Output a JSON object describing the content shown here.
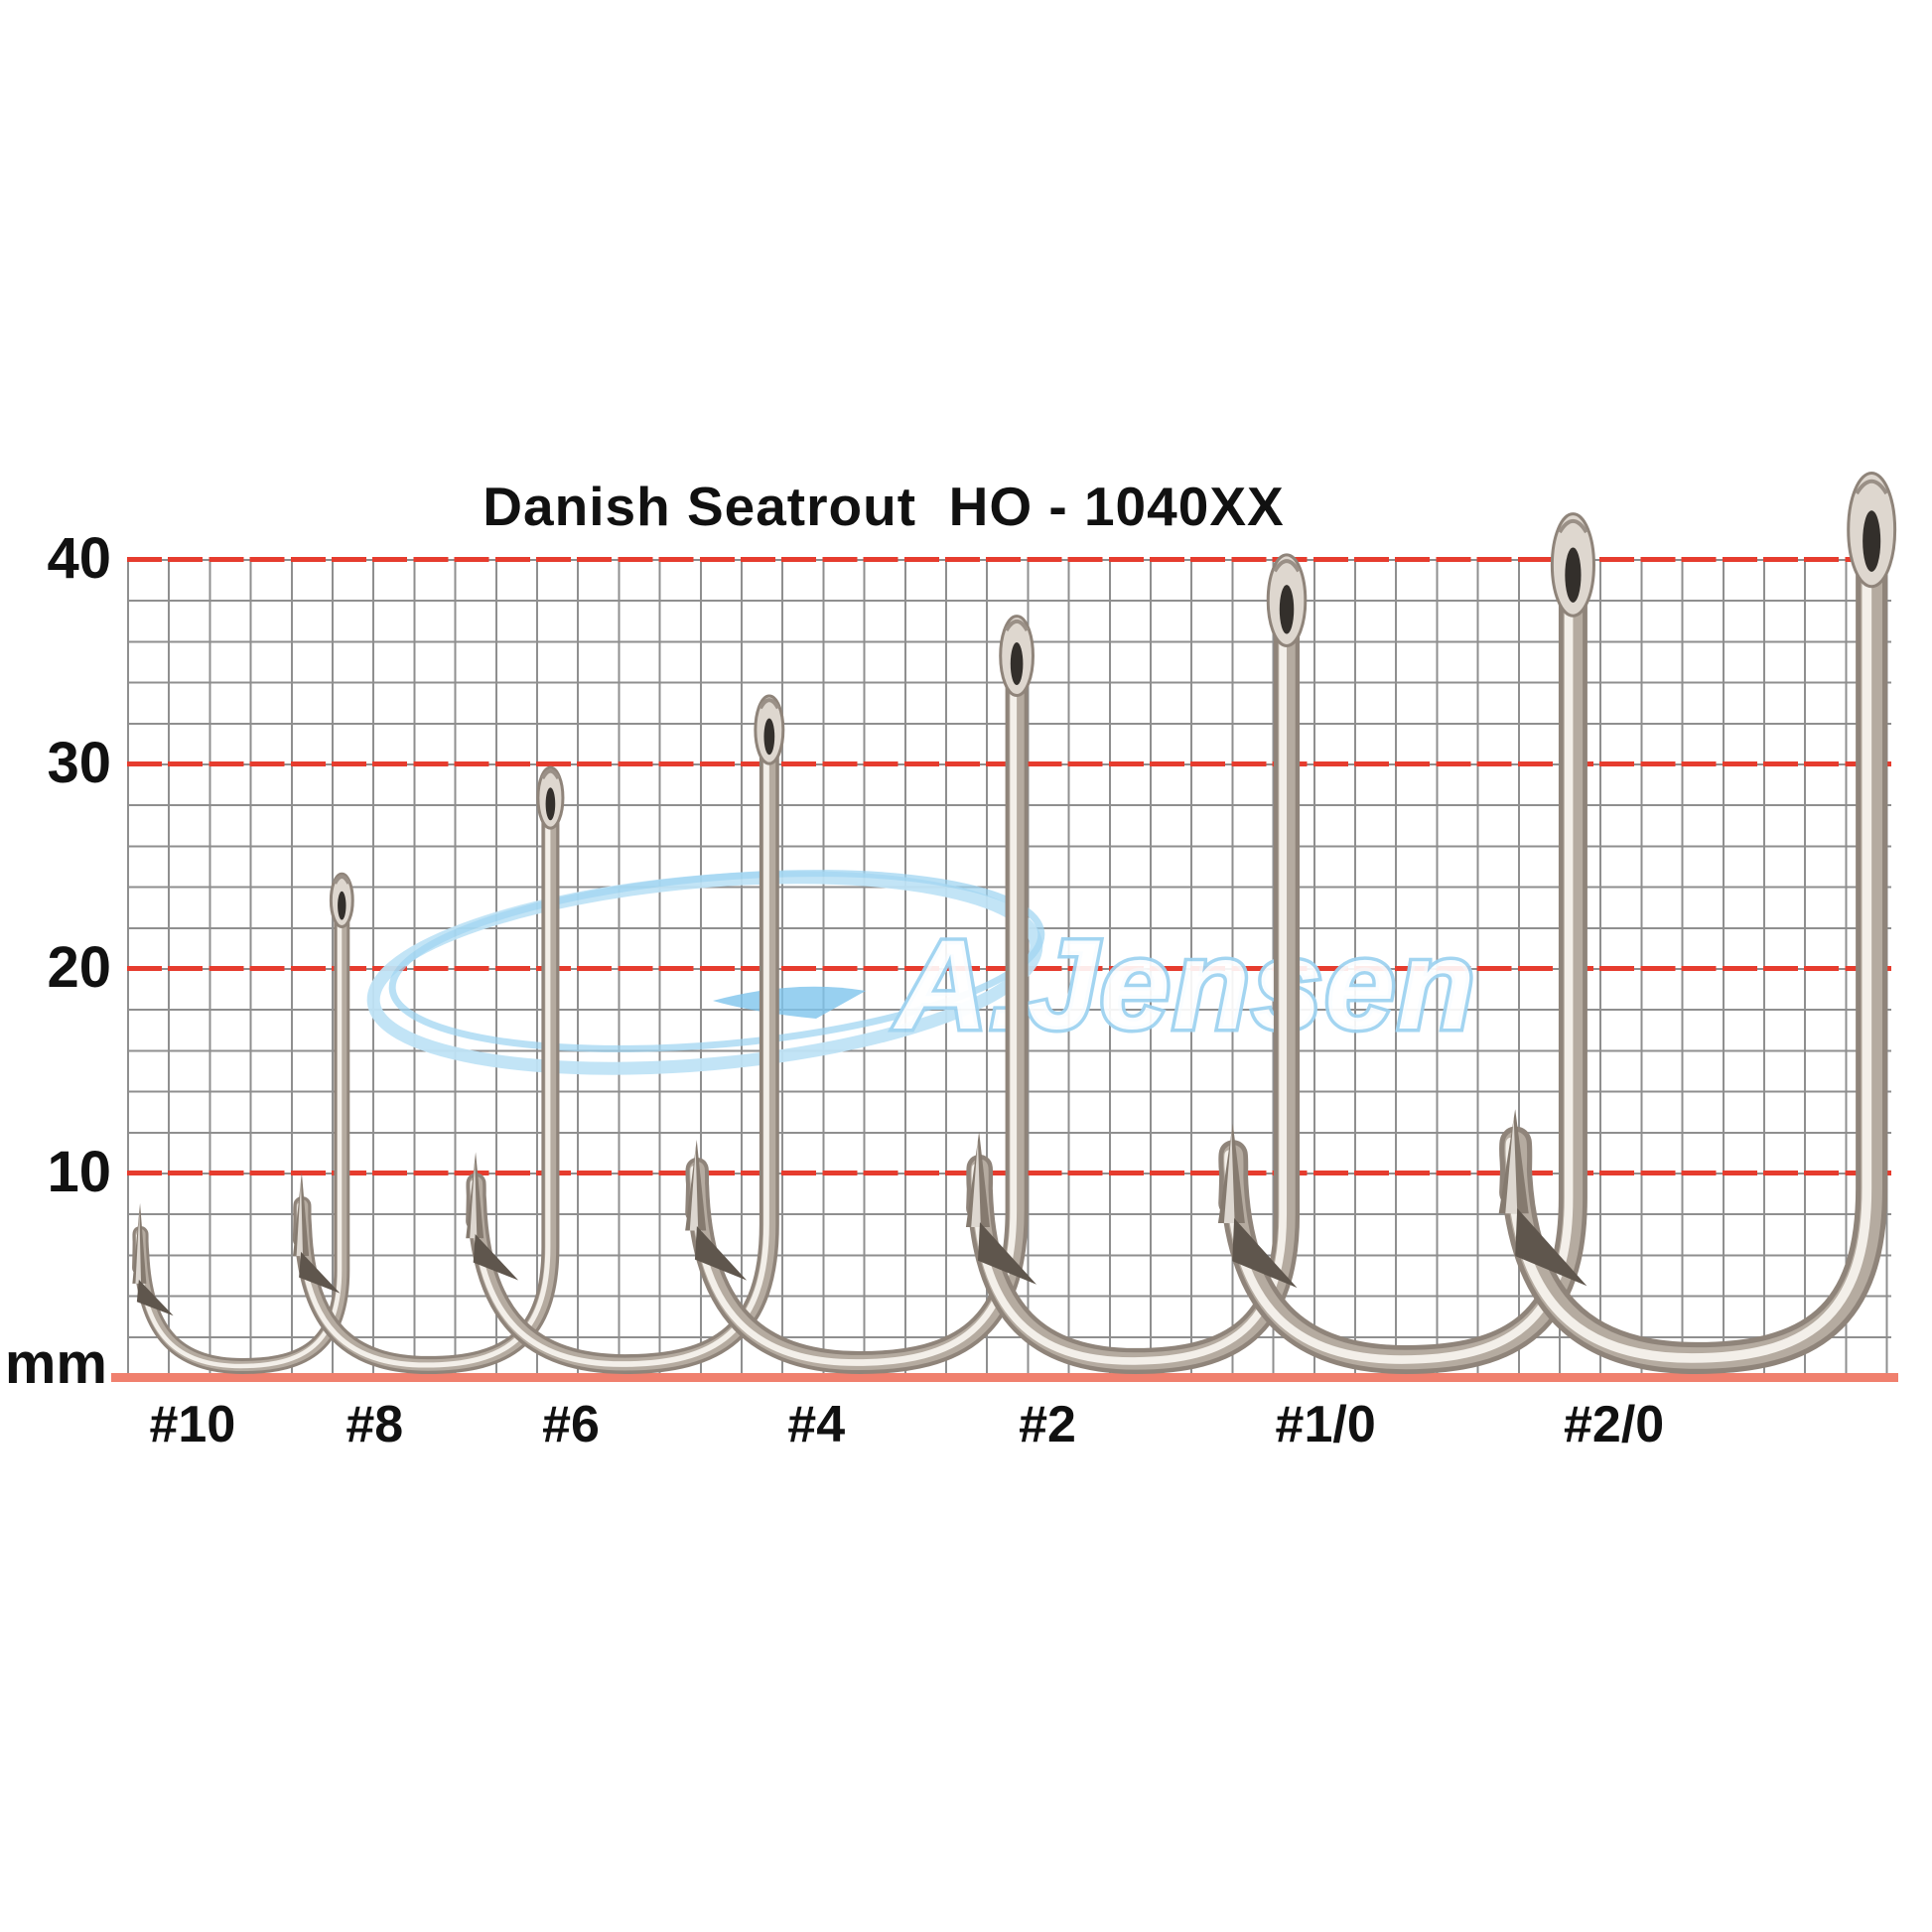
{
  "title": "Danish Seatrout  HO - 1040XX",
  "watermark": {
    "text": "A.Jensen"
  },
  "axis": {
    "unit_label": "mm",
    "ticks": [
      {
        "label": "40",
        "mm": 40
      },
      {
        "label": "30",
        "mm": 30
      },
      {
        "label": "20",
        "mm": 20
      },
      {
        "label": "10",
        "mm": 10
      }
    ]
  },
  "colors": {
    "red_line": "#e63c2e",
    "baseline": "#f0806e",
    "grid_line": "#8f8f8f",
    "metal_dark": "#8f847a",
    "metal_mid": "#b5aba0",
    "metal_light": "#f3efe9",
    "barb_dark": "#5f564d",
    "watermark_blue": "#a5d7f2",
    "text": "#111111"
  },
  "chart_data": {
    "type": "diagram-size-chart",
    "title": "Danish Seatrout  HO - 1040XX",
    "description": "Seven fishing hooks shown at true scale on a 2 mm grid with red reference lines every 10 mm (0-40 mm ruler).",
    "ylabel": "mm",
    "ylim": [
      0,
      40
    ],
    "grid_cell_mm": 2,
    "red_line_mm": [
      10,
      20,
      30,
      40
    ],
    "hooks": [
      {
        "label": "#10",
        "total_length_mm": 24.6,
        "point_height_mm": 8.5,
        "shank_x_mm": 10.5,
        "point_x_mm": 0.6,
        "wire_mm": 0.68,
        "label_x_mm": 3.2
      },
      {
        "label": "#8",
        "total_length_mm": 29.8,
        "point_height_mm": 10.0,
        "shank_x_mm": 20.7,
        "point_x_mm": 8.5,
        "wire_mm": 0.78,
        "label_x_mm": 12.1
      },
      {
        "label": "#6",
        "total_length_mm": 33.3,
        "point_height_mm": 11.0,
        "shank_x_mm": 31.4,
        "point_x_mm": 17.0,
        "wire_mm": 0.87,
        "label_x_mm": 21.7
      },
      {
        "label": "#4",
        "total_length_mm": 37.2,
        "point_height_mm": 11.6,
        "shank_x_mm": 43.5,
        "point_x_mm": 27.8,
        "wire_mm": 1.02,
        "label_x_mm": 33.7
      },
      {
        "label": "#2",
        "total_length_mm": 40.2,
        "point_height_mm": 12.0,
        "shank_x_mm": 56.7,
        "point_x_mm": 41.6,
        "wire_mm": 1.17,
        "label_x_mm": 45.0
      },
      {
        "label": "#1/0",
        "total_length_mm": 42.2,
        "point_height_mm": 12.4,
        "shank_x_mm": 70.7,
        "point_x_mm": 54.0,
        "wire_mm": 1.31,
        "label_x_mm": 58.6
      },
      {
        "label": "#2/0",
        "total_length_mm": 44.2,
        "point_height_mm": 13.1,
        "shank_x_mm": 85.3,
        "point_x_mm": 67.8,
        "wire_mm": 1.46,
        "label_x_mm": 72.7
      }
    ]
  }
}
